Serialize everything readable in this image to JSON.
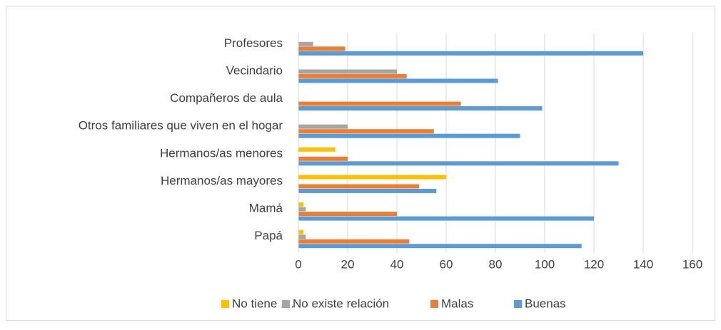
{
  "chart_data": {
    "type": "hbar",
    "categories": [
      "Papá",
      "Mamá",
      "Hermanos/as mayores",
      "Hermanos/as menores",
      "Otros familiares que viven en el hogar",
      "Compañeros de aula",
      "Vecindario",
      "Profesores"
    ],
    "series": [
      {
        "name": "No tiene ....",
        "color": "#ffc000",
        "values": [
          2,
          2,
          60,
          15,
          0,
          0,
          0,
          0
        ]
      },
      {
        "name": "No existe relación",
        "color": "#a5a5a5",
        "values": [
          3,
          3,
          0,
          0,
          20,
          0,
          40,
          6
        ]
      },
      {
        "name": "Malas",
        "color": "#ed7d31",
        "values": [
          45,
          40,
          49,
          20,
          55,
          66,
          44,
          19
        ]
      },
      {
        "name": "Buenas",
        "color": "#5b9bd5",
        "values": [
          115,
          120,
          56,
          130,
          90,
          99,
          81,
          140
        ]
      }
    ],
    "xlim": [
      0,
      160
    ],
    "xticks": [
      0,
      20,
      40,
      60,
      80,
      100,
      120,
      140,
      160
    ],
    "grid": true,
    "legend": "bottom"
  }
}
